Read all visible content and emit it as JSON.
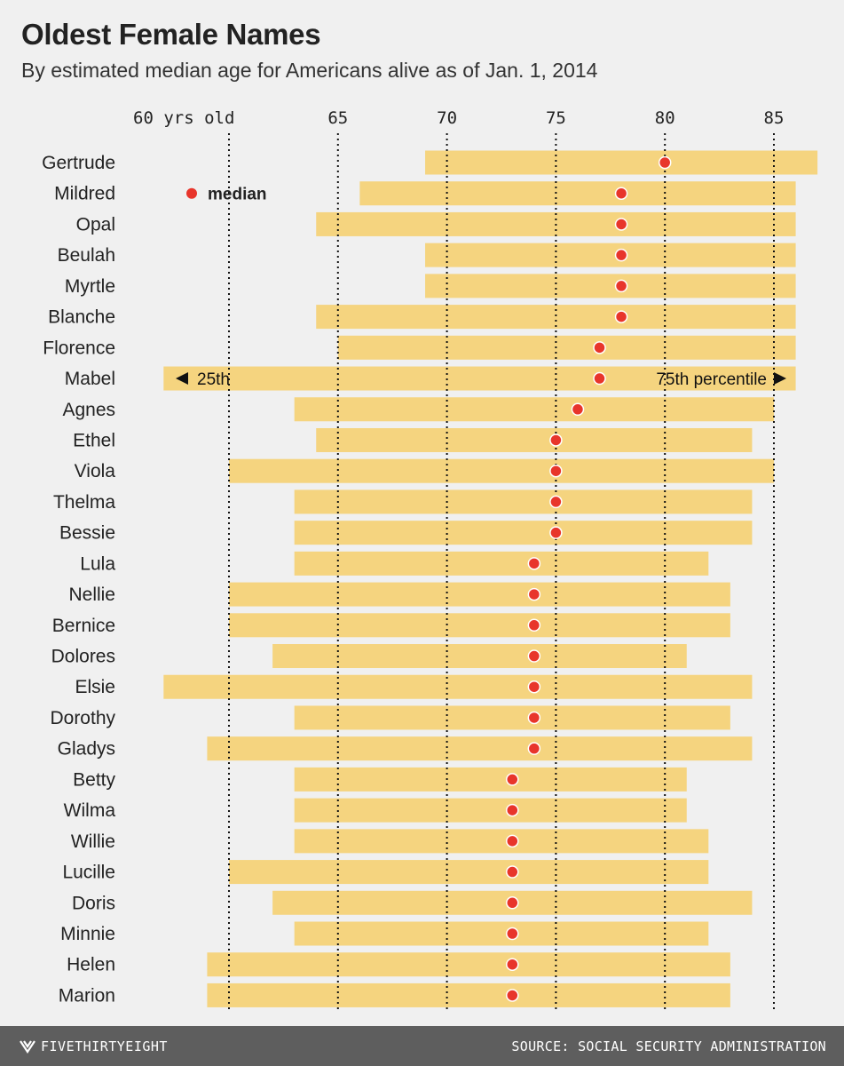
{
  "header": {
    "title": "Oldest Female Names",
    "subtitle": "By estimated median age for Americans alive as of Jan. 1, 2014"
  },
  "chart_data": {
    "type": "bar",
    "subtype": "range-with-median",
    "title": "Oldest Female Names",
    "subtitle": "By estimated median age for Americans alive as of Jan. 1, 2014",
    "xlim": [
      54,
      87
    ],
    "ticks": [
      {
        "value": 60,
        "label": "60 yrs old"
      },
      {
        "value": 65,
        "label": "65"
      },
      {
        "value": 70,
        "label": "70"
      },
      {
        "value": 75,
        "label": "75"
      },
      {
        "value": 80,
        "label": "80"
      },
      {
        "value": 85,
        "label": "85"
      }
    ],
    "grid": "dotted vertical",
    "legend": {
      "label": "median",
      "placement": "top-left"
    },
    "annotations": {
      "left": "25th",
      "right": "75th percentile",
      "row": "Mabel"
    },
    "colors": {
      "bar": "#f5d47f",
      "median": "#e8352b",
      "grid": "#111111"
    },
    "names": [
      {
        "name": "Gertrude",
        "p25": 69,
        "median": 80,
        "p75": 87
      },
      {
        "name": "Mildred",
        "p25": 66,
        "median": 78,
        "p75": 86
      },
      {
        "name": "Opal",
        "p25": 64,
        "median": 78,
        "p75": 86
      },
      {
        "name": "Beulah",
        "p25": 69,
        "median": 78,
        "p75": 86
      },
      {
        "name": "Myrtle",
        "p25": 69,
        "median": 78,
        "p75": 86
      },
      {
        "name": "Blanche",
        "p25": 64,
        "median": 78,
        "p75": 86
      },
      {
        "name": "Florence",
        "p25": 65,
        "median": 77,
        "p75": 86
      },
      {
        "name": "Mabel",
        "p25": 57,
        "median": 77,
        "p75": 86
      },
      {
        "name": "Agnes",
        "p25": 63,
        "median": 76,
        "p75": 85
      },
      {
        "name": "Ethel",
        "p25": 64,
        "median": 75,
        "p75": 84
      },
      {
        "name": "Viola",
        "p25": 60,
        "median": 75,
        "p75": 85
      },
      {
        "name": "Thelma",
        "p25": 63,
        "median": 75,
        "p75": 84
      },
      {
        "name": "Bessie",
        "p25": 63,
        "median": 75,
        "p75": 84
      },
      {
        "name": "Lula",
        "p25": 63,
        "median": 74,
        "p75": 82
      },
      {
        "name": "Nellie",
        "p25": 60,
        "median": 74,
        "p75": 83
      },
      {
        "name": "Bernice",
        "p25": 60,
        "median": 74,
        "p75": 83
      },
      {
        "name": "Dolores",
        "p25": 62,
        "median": 74,
        "p75": 81
      },
      {
        "name": "Elsie",
        "p25": 57,
        "median": 74,
        "p75": 84
      },
      {
        "name": "Dorothy",
        "p25": 63,
        "median": 74,
        "p75": 83
      },
      {
        "name": "Gladys",
        "p25": 59,
        "median": 74,
        "p75": 84
      },
      {
        "name": "Betty",
        "p25": 63,
        "median": 73,
        "p75": 81
      },
      {
        "name": "Wilma",
        "p25": 63,
        "median": 73,
        "p75": 81
      },
      {
        "name": "Willie",
        "p25": 63,
        "median": 73,
        "p75": 82
      },
      {
        "name": "Lucille",
        "p25": 60,
        "median": 73,
        "p75": 82
      },
      {
        "name": "Doris",
        "p25": 62,
        "median": 73,
        "p75": 84
      },
      {
        "name": "Minnie",
        "p25": 63,
        "median": 73,
        "p75": 82
      },
      {
        "name": "Helen",
        "p25": 59,
        "median": 73,
        "p75": 83
      },
      {
        "name": "Marion",
        "p25": 59,
        "median": 73,
        "p75": 83
      }
    ]
  },
  "footer": {
    "logo": "FIVETHIRTYEIGHT",
    "source": "SOURCE: SOCIAL SECURITY ADMINISTRATION"
  }
}
